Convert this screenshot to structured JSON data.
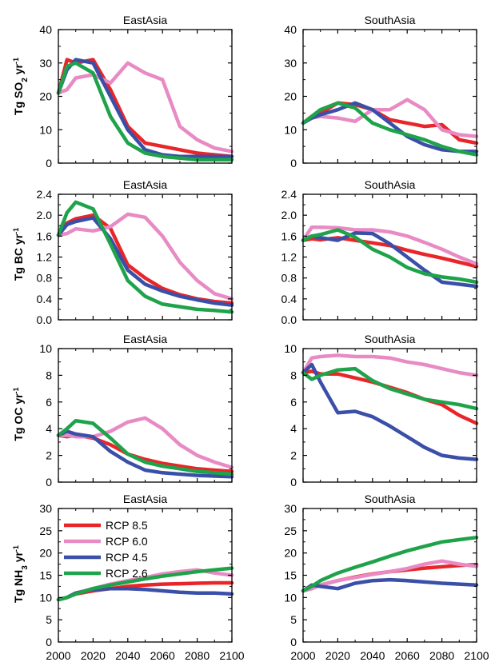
{
  "chart_data": [
    {
      "type": "line",
      "title": "EastAsia",
      "ylabel": "Tg SO₂ yr⁻¹",
      "ylim": [
        0,
        40
      ],
      "yticks": [
        "0",
        "10",
        "20",
        "30",
        "40"
      ],
      "x": [
        2000,
        2005,
        2010,
        2020,
        2030,
        2040,
        2050,
        2060,
        2070,
        2080,
        2090,
        2100
      ],
      "series": [
        {
          "name": "RCP 8.5",
          "color": "#e8262a",
          "values": [
            21,
            31,
            30,
            31,
            22,
            11,
            6,
            5,
            4,
            3,
            2.5,
            2
          ]
        },
        {
          "name": "RCP 6.0",
          "color": "#e88bc4",
          "values": [
            21,
            22,
            25.5,
            26.5,
            24,
            30,
            27,
            25,
            11,
            7,
            4.5,
            3.5
          ]
        },
        {
          "name": "RCP 4.5",
          "color": "#3a4fa8",
          "values": [
            21,
            28,
            31,
            30,
            20,
            10,
            4,
            2.5,
            2,
            2,
            2,
            2
          ]
        },
        {
          "name": "RCP 2.6",
          "color": "#1ea34a",
          "values": [
            21,
            29,
            30,
            27,
            14,
            6,
            3,
            2,
            1.5,
            1,
            1,
            1
          ]
        }
      ]
    },
    {
      "type": "line",
      "title": "SouthAsia",
      "ylim": [
        0,
        40
      ],
      "yticks": [
        "0",
        "10",
        "20",
        "30",
        "40"
      ],
      "x": [
        2000,
        2005,
        2010,
        2020,
        2030,
        2040,
        2050,
        2060,
        2070,
        2080,
        2090,
        2100
      ],
      "series": [
        {
          "name": "RCP 8.5",
          "color": "#e8262a",
          "values": [
            12,
            14,
            15,
            18,
            17.5,
            16,
            13,
            12,
            11,
            11.5,
            7,
            6
          ]
        },
        {
          "name": "RCP 6.0",
          "color": "#e88bc4",
          "values": [
            12,
            13.5,
            14,
            13.5,
            12.5,
            16,
            16,
            19,
            16,
            10,
            8.5,
            8
          ]
        },
        {
          "name": "RCP 4.5",
          "color": "#3a4fa8",
          "values": [
            12,
            13.5,
            14.5,
            16,
            18,
            16,
            12,
            8,
            5.5,
            4,
            3.5,
            3.5
          ]
        },
        {
          "name": "RCP 2.6",
          "color": "#1ea34a",
          "values": [
            12,
            14,
            16,
            18,
            16.5,
            12,
            10,
            8.5,
            7,
            5,
            3.5,
            2.5
          ]
        }
      ]
    },
    {
      "type": "line",
      "title": "EastAsia",
      "ylabel": "Tg BC yr⁻¹",
      "ylim": [
        0,
        2.4
      ],
      "yticks": [
        "0.0",
        "0.4",
        "0.8",
        "1.2",
        "1.6",
        "2.0",
        "2.4"
      ],
      "x": [
        2000,
        2005,
        2010,
        2020,
        2030,
        2040,
        2050,
        2060,
        2070,
        2080,
        2090,
        2100
      ],
      "series": [
        {
          "name": "RCP 8.5",
          "color": "#e8262a",
          "values": [
            1.62,
            1.85,
            1.93,
            2.0,
            1.75,
            1.05,
            0.8,
            0.6,
            0.48,
            0.4,
            0.35,
            0.32
          ]
        },
        {
          "name": "RCP 6.0",
          "color": "#e88bc4",
          "values": [
            1.62,
            1.65,
            1.74,
            1.7,
            1.78,
            2.02,
            1.96,
            1.6,
            1.1,
            0.75,
            0.5,
            0.4
          ]
        },
        {
          "name": "RCP 4.5",
          "color": "#3a4fa8",
          "values": [
            1.62,
            1.82,
            1.88,
            1.95,
            1.55,
            0.95,
            0.68,
            0.55,
            0.45,
            0.38,
            0.32,
            0.28
          ]
        },
        {
          "name": "RCP 2.6",
          "color": "#1ea34a",
          "values": [
            1.62,
            2.05,
            2.25,
            2.12,
            1.45,
            0.75,
            0.45,
            0.3,
            0.25,
            0.2,
            0.18,
            0.15
          ]
        }
      ]
    },
    {
      "type": "line",
      "title": "SouthAsia",
      "ylim": [
        0,
        2.4
      ],
      "yticks": [
        "0.0",
        "0.4",
        "0.8",
        "1.2",
        "1.6",
        "2.0",
        "2.4"
      ],
      "x": [
        2000,
        2005,
        2010,
        2020,
        2030,
        2040,
        2050,
        2060,
        2070,
        2080,
        2090,
        2100
      ],
      "series": [
        {
          "name": "RCP 8.5",
          "color": "#e8262a",
          "values": [
            1.52,
            1.55,
            1.53,
            1.57,
            1.52,
            1.47,
            1.42,
            1.33,
            1.25,
            1.18,
            1.1,
            1.02
          ]
        },
        {
          "name": "RCP 6.0",
          "color": "#e88bc4",
          "values": [
            1.52,
            1.77,
            1.77,
            1.76,
            1.72,
            1.72,
            1.68,
            1.6,
            1.48,
            1.35,
            1.2,
            1.07
          ]
        },
        {
          "name": "RCP 4.5",
          "color": "#3a4fa8",
          "values": [
            1.52,
            1.6,
            1.57,
            1.52,
            1.66,
            1.65,
            1.45,
            1.2,
            0.95,
            0.72,
            0.68,
            0.64
          ]
        },
        {
          "name": "RCP 2.6",
          "color": "#1ea34a",
          "values": [
            1.52,
            1.6,
            1.63,
            1.72,
            1.58,
            1.35,
            1.2,
            1.0,
            0.88,
            0.82,
            0.78,
            0.72
          ]
        }
      ]
    },
    {
      "type": "line",
      "title": "EastAsia",
      "ylabel": "Tg OC yr⁻¹",
      "ylim": [
        0,
        10
      ],
      "yticks": [
        "0",
        "2",
        "4",
        "6",
        "8",
        "10"
      ],
      "x": [
        2000,
        2005,
        2010,
        2020,
        2030,
        2040,
        2050,
        2060,
        2070,
        2080,
        2090,
        2100
      ],
      "series": [
        {
          "name": "RCP 8.5",
          "color": "#e8262a",
          "values": [
            3.5,
            3.4,
            3.5,
            3.3,
            2.8,
            2.1,
            1.7,
            1.4,
            1.2,
            1.0,
            0.9,
            0.8
          ]
        },
        {
          "name": "RCP 6.0",
          "color": "#e88bc4",
          "values": [
            3.5,
            3.5,
            3.4,
            3.4,
            3.8,
            4.5,
            4.8,
            4.0,
            2.8,
            2.0,
            1.5,
            1.1
          ]
        },
        {
          "name": "RCP 4.5",
          "color": "#3a4fa8",
          "values": [
            3.5,
            3.8,
            3.6,
            3.4,
            2.3,
            1.5,
            0.9,
            0.7,
            0.6,
            0.5,
            0.45,
            0.4
          ]
        },
        {
          "name": "RCP 2.6",
          "color": "#1ea34a",
          "values": [
            3.5,
            4.0,
            4.6,
            4.4,
            3.3,
            2.1,
            1.5,
            1.2,
            1.0,
            0.8,
            0.7,
            0.6
          ]
        }
      ]
    },
    {
      "type": "line",
      "title": "SouthAsia",
      "ylim": [
        0,
        10
      ],
      "yticks": [
        "0",
        "2",
        "4",
        "6",
        "8",
        "10"
      ],
      "x": [
        2000,
        2005,
        2010,
        2020,
        2030,
        2040,
        2050,
        2060,
        2070,
        2080,
        2090,
        2100
      ],
      "series": [
        {
          "name": "RCP 8.5",
          "color": "#e8262a",
          "values": [
            8.2,
            8.3,
            8.1,
            8.1,
            7.8,
            7.5,
            7.1,
            6.7,
            6.2,
            5.8,
            5.0,
            4.4
          ]
        },
        {
          "name": "RCP 6.0",
          "color": "#e88bc4",
          "values": [
            8.2,
            9.3,
            9.4,
            9.5,
            9.4,
            9.4,
            9.3,
            9.0,
            8.8,
            8.5,
            8.2,
            8.0
          ]
        },
        {
          "name": "RCP 4.5",
          "color": "#3a4fa8",
          "values": [
            8.2,
            8.8,
            7.5,
            5.2,
            5.3,
            4.9,
            4.2,
            3.4,
            2.6,
            2.0,
            1.8,
            1.7
          ]
        },
        {
          "name": "RCP 2.6",
          "color": "#1ea34a",
          "values": [
            8.2,
            7.7,
            8.0,
            8.4,
            8.5,
            7.6,
            7.0,
            6.6,
            6.2,
            6.0,
            5.8,
            5.5
          ]
        }
      ]
    },
    {
      "type": "line",
      "title": "EastAsia",
      "ylabel": "Tg NH₃ yr⁻¹",
      "ylim": [
        0,
        30
      ],
      "yticks": [
        "0",
        "5",
        "10",
        "15",
        "20",
        "25",
        "30"
      ],
      "x": [
        2000,
        2005,
        2010,
        2020,
        2030,
        2040,
        2050,
        2060,
        2070,
        2080,
        2090,
        2100
      ],
      "series": [
        {
          "name": "RCP 8.5",
          "color": "#e8262a",
          "values": [
            9.5,
            10.0,
            10.8,
            11.5,
            12.0,
            12.5,
            12.8,
            13.0,
            13.1,
            13.2,
            13.3,
            13.3
          ]
        },
        {
          "name": "RCP 6.0",
          "color": "#e88bc4",
          "values": [
            9.5,
            10.0,
            11.0,
            12.0,
            13.0,
            13.8,
            14.5,
            15.3,
            15.8,
            16.2,
            15.5,
            15.0
          ]
        },
        {
          "name": "RCP 4.5",
          "color": "#3a4fa8",
          "values": [
            9.5,
            10.0,
            11.0,
            11.8,
            12.0,
            12.0,
            11.8,
            11.5,
            11.2,
            11.0,
            11.0,
            10.8
          ]
        },
        {
          "name": "RCP 2.6",
          "color": "#1ea34a",
          "values": [
            9.5,
            10.0,
            10.8,
            12.0,
            12.8,
            13.5,
            14.2,
            14.8,
            15.3,
            15.8,
            16.2,
            16.6
          ]
        }
      ]
    },
    {
      "type": "line",
      "title": "SouthAsia",
      "ylim": [
        0,
        30
      ],
      "yticks": [
        "0",
        "5",
        "10",
        "15",
        "20",
        "25",
        "30"
      ],
      "x": [
        2000,
        2005,
        2010,
        2020,
        2030,
        2040,
        2050,
        2060,
        2070,
        2080,
        2090,
        2100
      ],
      "series": [
        {
          "name": "RCP 8.5",
          "color": "#e8262a",
          "values": [
            11.5,
            12.0,
            12.8,
            13.8,
            14.6,
            15.3,
            15.8,
            16.2,
            16.6,
            16.9,
            17.2,
            17.4
          ]
        },
        {
          "name": "RCP 6.0",
          "color": "#e88bc4",
          "values": [
            11.5,
            12.0,
            12.8,
            13.8,
            14.5,
            15.2,
            15.8,
            16.5,
            17.5,
            18.2,
            17.5,
            17.0
          ]
        },
        {
          "name": "RCP 4.5",
          "color": "#3a4fa8",
          "values": [
            11.5,
            12.8,
            12.5,
            12.0,
            13.2,
            13.8,
            14.0,
            13.8,
            13.5,
            13.2,
            13.0,
            12.8
          ]
        },
        {
          "name": "RCP 2.6",
          "color": "#1ea34a",
          "values": [
            11.5,
            12.5,
            13.8,
            15.5,
            16.8,
            18.0,
            19.3,
            20.5,
            21.5,
            22.5,
            23.0,
            23.5
          ]
        }
      ]
    }
  ],
  "xticks": [
    "2000",
    "2020",
    "2040",
    "2060",
    "2080",
    "2100"
  ],
  "legend": [
    {
      "label": "RCP 8.5",
      "color": "#e8262a"
    },
    {
      "label": "RCP 6.0",
      "color": "#e88bc4"
    },
    {
      "label": "RCP 4.5",
      "color": "#3a4fa8"
    },
    {
      "label": "RCP 2.6",
      "color": "#1ea34a"
    }
  ]
}
